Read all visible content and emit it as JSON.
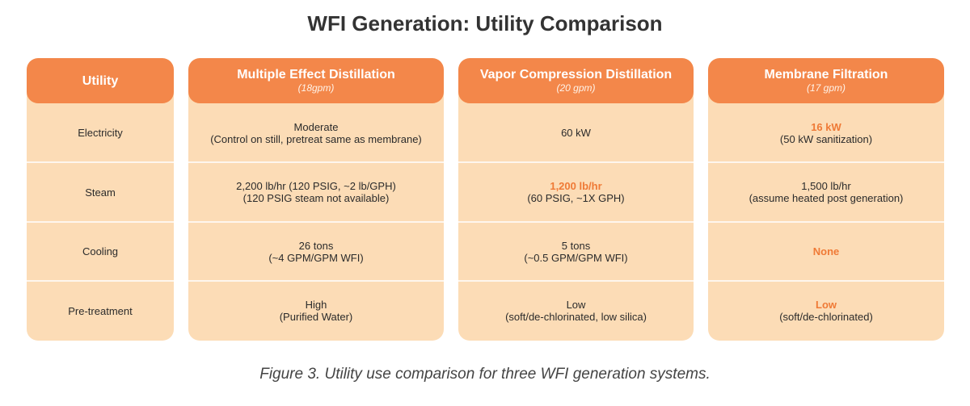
{
  "title": "WFI Generation: Utility Comparison",
  "caption": "Figure 3. Utility use comparison for three WFI generation systems.",
  "colors": {
    "header": "#f3874a",
    "body": "#fcdcb6",
    "highlight": "#ef7a36"
  },
  "table": {
    "utility_header": "Utility",
    "rows": [
      "Electricity",
      "Steam",
      "Cooling",
      "Pre-treatment"
    ],
    "systems": [
      {
        "name": "Multiple Effect Distillation",
        "rate": "(18gpm)",
        "electricity": {
          "value": "Moderate",
          "note": "(Control on still, pretreat same as membrane)"
        },
        "steam": {
          "value": "2,200 lb/hr (120 PSIG, ~2 lb/GPH)",
          "note": "(120 PSIG steam not available)"
        },
        "cooling": {
          "value": "26 tons",
          "note": "(~4 GPM/GPM WFI)"
        },
        "pretreatment": {
          "value": "High",
          "note": "(Purified Water)"
        }
      },
      {
        "name": "Vapor Compression Distillation",
        "rate": "(20 gpm)",
        "electricity": {
          "value": "60 kW",
          "note": ""
        },
        "steam": {
          "value": "1,200 lb/hr",
          "note": "(60 PSIG, ~1X GPH)"
        },
        "cooling": {
          "value": "5 tons",
          "note": "(~0.5 GPM/GPM WFI)"
        },
        "pretreatment": {
          "value": "Low",
          "note": "(soft/de-chlorinated, low silica)"
        }
      },
      {
        "name": "Membrane Filtration",
        "rate": "(17 gpm)",
        "electricity": {
          "value": "16 kW",
          "note": "(50 kW sanitization)"
        },
        "steam": {
          "value": "1,500 lb/hr",
          "note": "(assume heated post generation)"
        },
        "cooling": {
          "value": "None",
          "note": ""
        },
        "pretreatment": {
          "value": "Low",
          "note": "(soft/de-chlorinated)"
        }
      }
    ]
  }
}
